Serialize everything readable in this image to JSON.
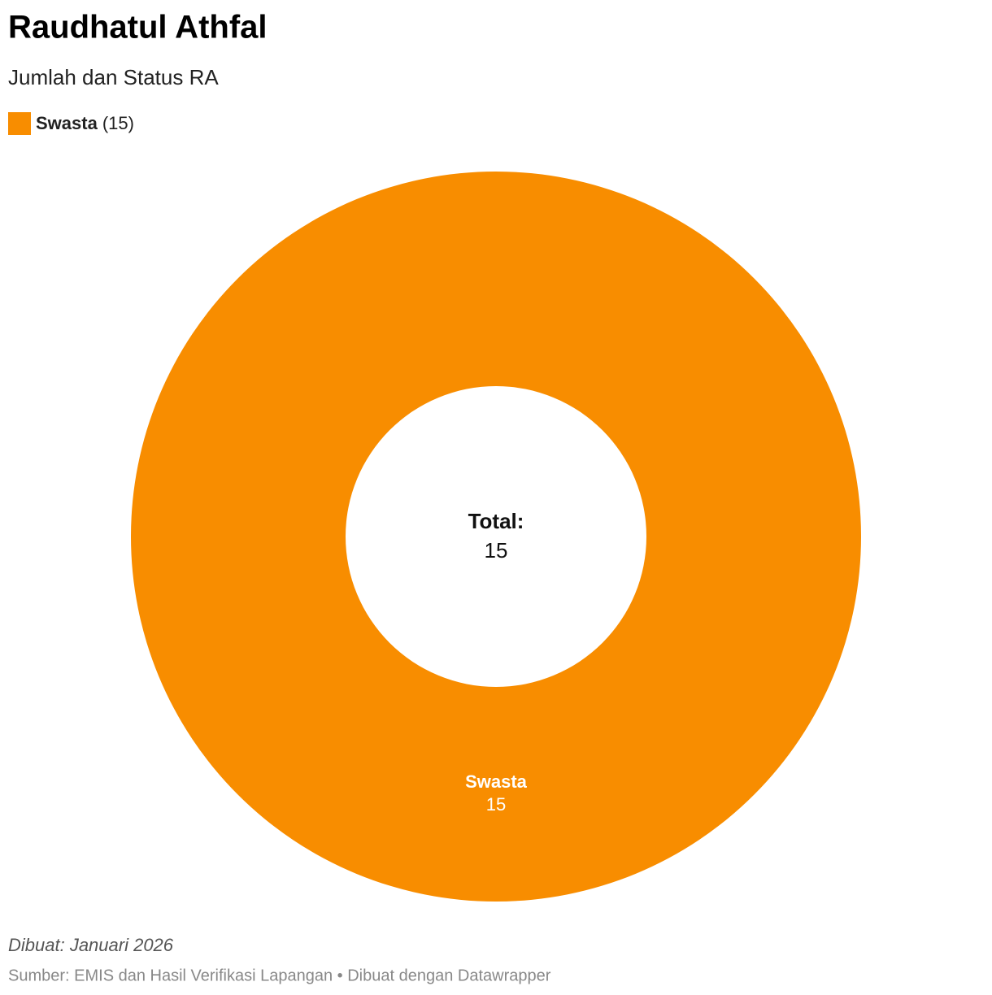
{
  "chart_data": {
    "type": "donut",
    "title": "Raudhatul Athfal",
    "subtitle": "Jumlah dan Status RA",
    "categories": [
      "Swasta"
    ],
    "values": [
      15
    ],
    "colors": [
      "#f88d00"
    ],
    "legend_value_labels": [
      "(15)"
    ],
    "total_label": "Total:",
    "total": 15,
    "note": "Dibuat: Januari 2026",
    "source": "Sumber: EMIS dan Hasil Verifikasi Lapangan • Dibuat dengan Datawrapper"
  }
}
